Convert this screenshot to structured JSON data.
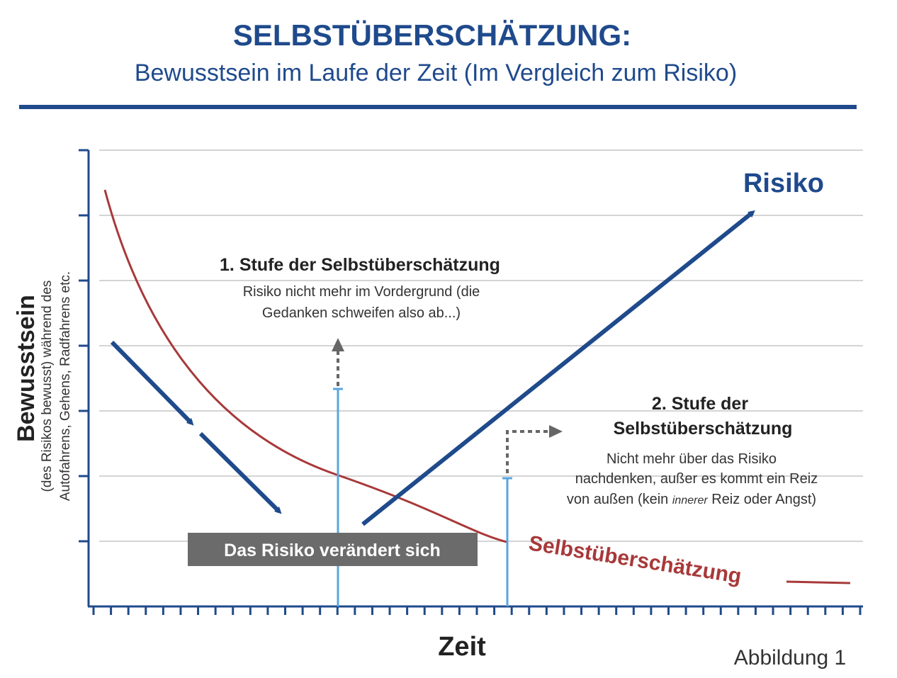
{
  "header": {
    "title": "SELBSTÜBERSCHÄTZUNG:",
    "subtitle": "Bewusstsein im Laufe der Zeit (Im Vergleich zum Risiko)"
  },
  "axes": {
    "ylabel_main": "Bewusstsein",
    "ylabel_sub_1": "(des Risikos bewusst) während des",
    "ylabel_sub_2": "Autofahrens, Gehens, Radfahrens etc.",
    "xlabel": "Zeit",
    "y_tick_count": 7,
    "x_tick_count": 45
  },
  "labels": {
    "risk": "Risiko",
    "overconfidence": "Selbstüberschätzung",
    "change_box": "Das Risiko verändert sich",
    "figure_caption": "Abbildung 1"
  },
  "stage1": {
    "title": "1. Stufe der Selbstüberschätzung",
    "line1": "Risiko nicht mehr im Vordergrund (die",
    "line2": "Gedanken schweifen also ab...)"
  },
  "stage2": {
    "title_1": "2. Stufe der",
    "title_2": "Selbstüberschätzung",
    "line1": "Nicht mehr über das Risiko",
    "line2": "nachdenken, außer es kommt ein Reiz",
    "line3_a": "von außen (kein ",
    "line3_em": "innerer",
    "line3_b": " Reiz oder Angst)"
  },
  "colors": {
    "blue": "#1f4a8c",
    "red": "#a8393a",
    "marker": "#5aa6de",
    "dashed": "#666666",
    "box": "#6b6b6b",
    "grid": "#d4d4d4"
  }
}
